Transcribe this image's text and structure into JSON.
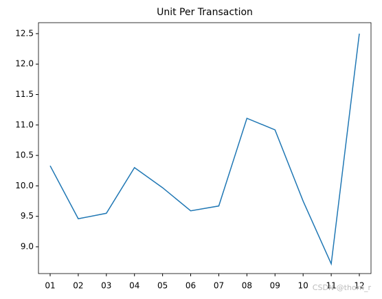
{
  "chart_data": {
    "type": "line",
    "title": "Unit Per Transaction",
    "categories": [
      "01",
      "02",
      "03",
      "04",
      "05",
      "06",
      "07",
      "08",
      "09",
      "10",
      "11",
      "12"
    ],
    "series": [
      {
        "name": "Unit Per Transaction",
        "color": "#1f77b4",
        "values": [
          10.33,
          9.46,
          9.55,
          10.3,
          9.97,
          9.59,
          9.67,
          11.11,
          10.92,
          9.75,
          8.72,
          12.5
        ]
      }
    ],
    "ylim": [
      8.56,
      12.68
    ],
    "yticks": [
      {
        "value": 9,
        "label": "9.0"
      },
      9.5,
      {
        "value": 10,
        "label": "10.0"
      },
      10.5,
      {
        "value": 11,
        "label": "11.0"
      },
      11.5,
      {
        "value": 12,
        "label": "12.0"
      },
      12.5
    ],
    "watermark": "CSDN @thorn_r"
  }
}
